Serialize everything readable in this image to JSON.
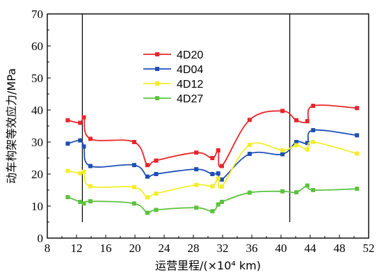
{
  "chart_data": {
    "type": "line",
    "xlabel": "运营里程/(×10⁴ km)",
    "ylabel": "动车构架等效应力/MPa",
    "xlim": [
      8,
      52
    ],
    "ylim": [
      0,
      70
    ],
    "xticks": [
      "8",
      "12",
      "16",
      "20",
      "24",
      "28",
      "32",
      "36",
      "40",
      "44",
      "48",
      "52"
    ],
    "yticks": [
      "0",
      "10",
      "20",
      "30",
      "40",
      "50",
      "60",
      "70"
    ],
    "grid": false,
    "legend_position": "upper-center",
    "vertical_markers": [
      12.8,
      41.2
    ],
    "series": [
      {
        "name": "4D20",
        "color": "#e8262a",
        "x": [
          10.8,
          12.5,
          13.0,
          13.9,
          19.9,
          21.7,
          22.9,
          28.4,
          30.6,
          31.4,
          31.9,
          35.7,
          40.2,
          42.1,
          43.6,
          44.4,
          50.4
        ],
        "y": [
          36.8,
          36.0,
          37.7,
          31.0,
          30.0,
          22.8,
          24.2,
          26.7,
          25.0,
          27.4,
          22.5,
          36.9,
          39.7,
          36.8,
          36.5,
          41.3,
          40.6
        ]
      },
      {
        "name": "4D04",
        "color": "#1f4fb4",
        "x": [
          10.8,
          12.5,
          13.0,
          13.9,
          19.9,
          21.7,
          22.9,
          28.4,
          30.6,
          31.4,
          31.9,
          35.7,
          40.2,
          42.1,
          43.6,
          44.4,
          50.4
        ],
        "y": [
          29.5,
          30.5,
          28.6,
          22.5,
          22.8,
          19.2,
          20.0,
          21.5,
          20.0,
          20.2,
          18.3,
          26.3,
          26.2,
          30.0,
          29.7,
          33.7,
          32.1
        ]
      },
      {
        "name": "4D12",
        "color": "#f2ee2a",
        "x": [
          10.8,
          12.5,
          13.0,
          13.9,
          19.9,
          21.7,
          22.9,
          28.4,
          30.6,
          31.4,
          31.9,
          35.7,
          40.2,
          42.1,
          43.6,
          44.4,
          50.4
        ],
        "y": [
          21.0,
          20.2,
          20.7,
          16.2,
          15.9,
          12.7,
          13.9,
          16.6,
          16.2,
          18.6,
          16.1,
          29.1,
          27.4,
          29.0,
          27.7,
          30.0,
          26.4
        ]
      },
      {
        "name": "4D27",
        "color": "#5cc23f",
        "x": [
          10.8,
          12.5,
          13.0,
          13.9,
          19.9,
          21.7,
          22.9,
          28.4,
          30.6,
          31.4,
          31.9,
          35.7,
          40.2,
          42.1,
          43.6,
          44.4,
          50.4
        ],
        "y": [
          12.8,
          11.3,
          10.8,
          11.5,
          10.8,
          7.9,
          8.8,
          9.5,
          8.4,
          10.5,
          11.3,
          14.2,
          14.6,
          14.3,
          16.4,
          15.0,
          15.4
        ]
      }
    ]
  }
}
